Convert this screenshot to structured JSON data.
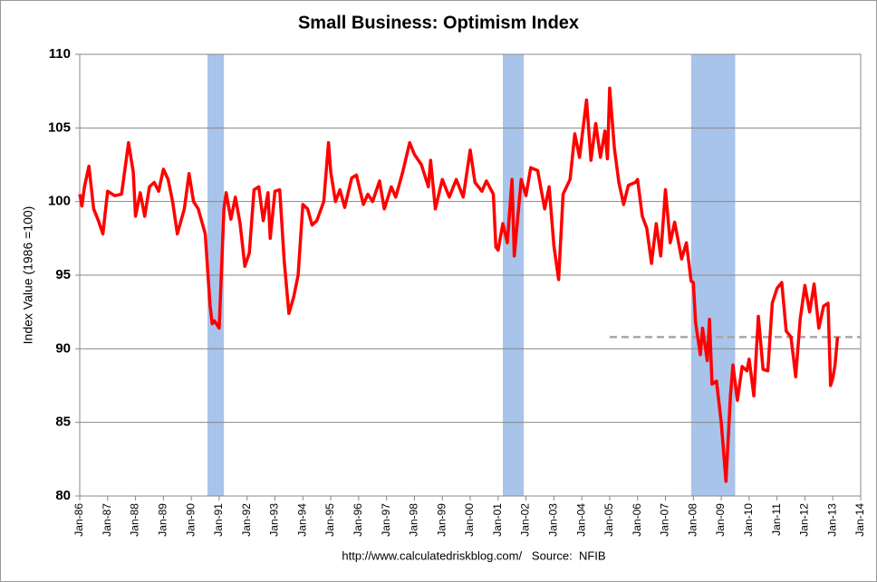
{
  "chart_data": {
    "type": "line",
    "title": "Small Business: Optimism Index",
    "y_label": "Index Value (1986 =100)",
    "source": "http://www.calculatedriskblog.com/   Source:  NFIB",
    "xlim": [
      1986,
      2014
    ],
    "ylim": [
      80,
      110
    ],
    "yticks": [
      80,
      85,
      90,
      95,
      100,
      105,
      110
    ],
    "xticks": [
      {
        "value": 1986,
        "label": "Jan-86"
      },
      {
        "value": 1987,
        "label": "Jan-87"
      },
      {
        "value": 1988,
        "label": "Jan-88"
      },
      {
        "value": 1989,
        "label": "Jan-89"
      },
      {
        "value": 1990,
        "label": "Jan-90"
      },
      {
        "value": 1991,
        "label": "Jan-91"
      },
      {
        "value": 1992,
        "label": "Jan-92"
      },
      {
        "value": 1993,
        "label": "Jan-93"
      },
      {
        "value": 1994,
        "label": "Jan-94"
      },
      {
        "value": 1995,
        "label": "Jan-95"
      },
      {
        "value": 1996,
        "label": "Jan-96"
      },
      {
        "value": 1997,
        "label": "Jan-97"
      },
      {
        "value": 1998,
        "label": "Jan-98"
      },
      {
        "value": 1999,
        "label": "Jan-99"
      },
      {
        "value": 2000,
        "label": "Jan-00"
      },
      {
        "value": 2001,
        "label": "Jan-01"
      },
      {
        "value": 2002,
        "label": "Jan-02"
      },
      {
        "value": 2003,
        "label": "Jan-03"
      },
      {
        "value": 2004,
        "label": "Jan-04"
      },
      {
        "value": 2005,
        "label": "Jan-05"
      },
      {
        "value": 2006,
        "label": "Jan-06"
      },
      {
        "value": 2007,
        "label": "Jan-07"
      },
      {
        "value": 2008,
        "label": "Jan-08"
      },
      {
        "value": 2009,
        "label": "Jan-09"
      },
      {
        "value": 2010,
        "label": "Jan-10"
      },
      {
        "value": 2011,
        "label": "Jan-11"
      },
      {
        "value": 2012,
        "label": "Jan-12"
      },
      {
        "value": 2013,
        "label": "Jan-13"
      },
      {
        "value": 2014,
        "label": "Jan-14"
      }
    ],
    "grid": true,
    "color": "#ff0000",
    "recession_color": "#a9c4ea",
    "recessions": [
      [
        1990.58,
        1991.17
      ],
      [
        2001.17,
        2001.92
      ],
      [
        2007.92,
        2009.5
      ]
    ],
    "reference_line": {
      "value": 90.8,
      "from": 2005,
      "color": "#a6a6a6"
    },
    "x": [
      1986.0,
      1986.08,
      1986.17,
      1986.33,
      1986.5,
      1986.67,
      1986.83,
      1987.0,
      1987.25,
      1987.5,
      1987.75,
      1987.92,
      1988.0,
      1988.17,
      1988.33,
      1988.5,
      1988.67,
      1988.83,
      1989.0,
      1989.17,
      1989.33,
      1989.5,
      1989.75,
      1989.92,
      1990.08,
      1990.25,
      1990.5,
      1990.67,
      1990.75,
      1990.83,
      1991.0,
      1991.17,
      1991.25,
      1991.42,
      1991.58,
      1991.75,
      1991.92,
      1992.08,
      1992.25,
      1992.42,
      1992.58,
      1992.75,
      1992.83,
      1993.0,
      1993.17,
      1993.33,
      1993.5,
      1993.67,
      1993.83,
      1994.0,
      1994.17,
      1994.33,
      1994.5,
      1994.75,
      1994.92,
      1995.0,
      1995.17,
      1995.33,
      1995.5,
      1995.75,
      1995.92,
      1996.17,
      1996.33,
      1996.5,
      1996.75,
      1996.92,
      1997.17,
      1997.33,
      1997.58,
      1997.83,
      1998.0,
      1998.25,
      1998.5,
      1998.58,
      1998.75,
      1999.0,
      1999.25,
      1999.5,
      1999.75,
      2000.0,
      2000.17,
      2000.42,
      2000.58,
      2000.83,
      2000.92,
      2001.0,
      2001.17,
      2001.33,
      2001.5,
      2001.58,
      2001.83,
      2002.0,
      2002.17,
      2002.42,
      2002.67,
      2002.83,
      2003.0,
      2003.17,
      2003.33,
      2003.58,
      2003.75,
      2003.92,
      2004.17,
      2004.33,
      2004.5,
      2004.67,
      2004.83,
      2004.92,
      2005.0,
      2005.17,
      2005.33,
      2005.5,
      2005.67,
      2005.92,
      2006.0,
      2006.17,
      2006.33,
      2006.5,
      2006.67,
      2006.83,
      2007.0,
      2007.17,
      2007.33,
      2007.58,
      2007.75,
      2007.92,
      2008.0,
      2008.08,
      2008.25,
      2008.33,
      2008.5,
      2008.58,
      2008.67,
      2008.83,
      2009.0,
      2009.17,
      2009.33,
      2009.42,
      2009.58,
      2009.75,
      2009.92,
      2010.0,
      2010.17,
      2010.33,
      2010.5,
      2010.67,
      2010.83,
      2011.0,
      2011.17,
      2011.33,
      2011.5,
      2011.67,
      2011.83,
      2012.0,
      2012.17,
      2012.33,
      2012.5,
      2012.67,
      2012.83,
      2012.92,
      2013.0,
      2013.08,
      2013.17
    ],
    "values": [
      100.5,
      99.7,
      101,
      102.4,
      99.5,
      98.7,
      97.8,
      100.7,
      100.4,
      100.5,
      104,
      102,
      99,
      100.6,
      99,
      101,
      101.3,
      100.7,
      102.2,
      101.5,
      100,
      97.8,
      99.5,
      101.9,
      100,
      99.5,
      97.8,
      93,
      91.7,
      91.9,
      91.4,
      99.5,
      100.6,
      98.8,
      100.3,
      98.5,
      95.6,
      96.5,
      100.8,
      101,
      98.7,
      100.6,
      97.5,
      100.7,
      100.8,
      96,
      92.4,
      93.5,
      95,
      99.8,
      99.5,
      98.4,
      98.7,
      100,
      104,
      102,
      100,
      100.8,
      99.6,
      101.6,
      101.8,
      99.8,
      100.5,
      100,
      101.4,
      99.5,
      101,
      100.3,
      102,
      104,
      103.2,
      102.5,
      101,
      102.8,
      99.5,
      101.5,
      100.3,
      101.5,
      100.3,
      103.5,
      101.3,
      100.7,
      101.4,
      100.5,
      96.9,
      96.7,
      98.5,
      97.2,
      101.5,
      96.3,
      101.5,
      100.4,
      102.3,
      102.1,
      99.5,
      101,
      97,
      94.7,
      100.5,
      101.5,
      104.6,
      103,
      106.9,
      102.8,
      105.3,
      103,
      104.8,
      102.9,
      107.7,
      103.6,
      101.3,
      99.8,
      101.1,
      101.3,
      101.5,
      99,
      98.2,
      95.8,
      98.5,
      96.3,
      100.8,
      97.2,
      98.6,
      96.1,
      97.2,
      94.6,
      94.5,
      91.8,
      89.6,
      91.4,
      89.2,
      92,
      87.6,
      87.8,
      85,
      81,
      86.8,
      88.9,
      86.5,
      88.8,
      88.5,
      89.3,
      86.8,
      92.2,
      88.6,
      88.5,
      93.1,
      94.1,
      94.5,
      91.2,
      90.8,
      88.1,
      92,
      94.3,
      92.5,
      94.4,
      91.4,
      92.9,
      93.1,
      87.5,
      88,
      88.9,
      90.8
    ]
  }
}
